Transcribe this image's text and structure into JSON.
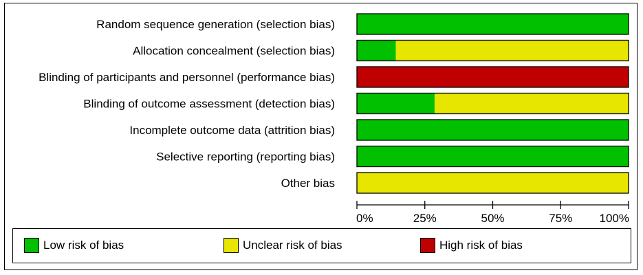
{
  "chart_data": {
    "type": "bar",
    "orientation": "horizontal",
    "stacked": true,
    "categories": [
      "Random sequence generation (selection bias)",
      "Allocation concealment (selection bias)",
      "Blinding of participants and personnel (performance bias)",
      "Blinding of outcome assessment (detection bias)",
      "Incomplete outcome data (attrition bias)",
      "Selective reporting (reporting bias)",
      "Other bias"
    ],
    "series": [
      {
        "name": "Low risk of bias",
        "color": "#00c000",
        "values": [
          100,
          14.3,
          0,
          28.6,
          100,
          100,
          0
        ]
      },
      {
        "name": "Unclear risk of bias",
        "color": "#e6e600",
        "values": [
          0,
          85.7,
          0,
          71.4,
          0,
          0,
          100
        ]
      },
      {
        "name": "High risk of bias",
        "color": "#c00000",
        "values": [
          0,
          0,
          100,
          0,
          0,
          0,
          0
        ]
      }
    ],
    "xlim": [
      0,
      100
    ],
    "xticks": [
      0,
      25,
      50,
      75,
      100
    ],
    "xtick_labels": [
      "0%",
      "25%",
      "50%",
      "75%",
      "100%"
    ],
    "legend_position": "bottom"
  }
}
